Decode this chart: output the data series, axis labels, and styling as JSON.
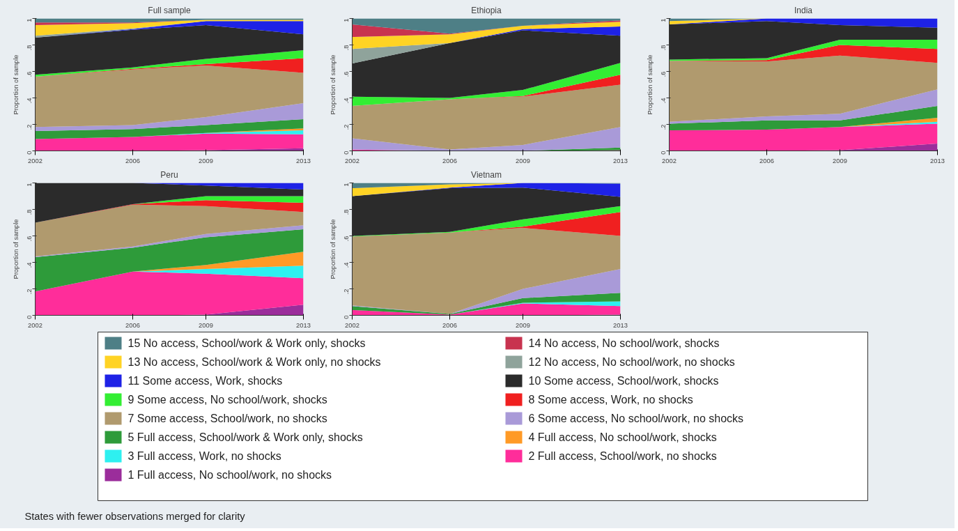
{
  "chart_data": [
    {
      "type": "area",
      "stacked": true,
      "title": "Full sample",
      "ylabel": "Proportion of sample",
      "x": [
        2002,
        2006,
        2009,
        2013
      ],
      "xlim": [
        2002,
        2013
      ],
      "xticks": [
        2002,
        2006,
        2009,
        2013
      ],
      "ylim": [
        0,
        1
      ],
      "yticks": [
        {
          "value": 0,
          "label": "0"
        },
        {
          "value": 0.2,
          "label": ".2"
        },
        {
          "value": 0.4,
          "label": ".4"
        },
        {
          "value": 0.6,
          "label": ".6"
        },
        {
          "value": 0.8,
          "label": ".8"
        },
        {
          "value": 1,
          "label": "1"
        }
      ],
      "legend": "bottom",
      "annotations": [
        "States with fewer observations merged for clarity"
      ],
      "series": [
        {
          "name": "1 Full access, No school/work, no shocks",
          "color": "#9b2d9b",
          "values": [
            0,
            0,
            0.005,
            0.02
          ]
        },
        {
          "name": "2 Full access, School/work, no shocks",
          "color": "#ff2d9a",
          "values": [
            0.09,
            0.105,
            0.125,
            0.105
          ]
        },
        {
          "name": "3 Full access, Work, no shocks",
          "color": "#2ef0f0",
          "values": [
            0,
            0,
            0.005,
            0.03
          ]
        },
        {
          "name": "4 Full access, No school/work, shocks",
          "color": "#ff9a26",
          "values": [
            0,
            0,
            0,
            0.015
          ]
        },
        {
          "name": "5 Full access, School/work & Work only, shocks",
          "color": "#2e9b3a",
          "values": [
            0.06,
            0.06,
            0.06,
            0.07
          ]
        },
        {
          "name": "6 Some access, No school/work, no shocks",
          "color": "#a99ad8",
          "values": [
            0.03,
            0.03,
            0.06,
            0.12
          ]
        },
        {
          "name": "7 Some access, School/work, no shocks",
          "color": "#b09a6e",
          "values": [
            0.38,
            0.42,
            0.39,
            0.23
          ]
        },
        {
          "name": "8 Some access, Work, no shocks",
          "color": "#f02020",
          "values": [
            0,
            0.005,
            0.01,
            0.11
          ]
        },
        {
          "name": "9 Some access, No school/work, shocks",
          "color": "#33ee33",
          "values": [
            0.015,
            0.01,
            0.04,
            0.06
          ]
        },
        {
          "name": "10 Some access, School/work, shocks",
          "color": "#2b2b2b",
          "values": [
            0.28,
            0.285,
            0.255,
            0.12
          ]
        },
        {
          "name": "11 Some access, Work, shocks",
          "color": "#1e22e6",
          "values": [
            0,
            0.005,
            0.03,
            0.1
          ]
        },
        {
          "name": "12 No access, No school/work, no shocks",
          "color": "#8fa39b",
          "values": [
            0.015,
            0.005,
            0,
            null
          ]
        },
        {
          "name": "13 No access, School/work & Work only, no shocks",
          "color": "#ffd324",
          "values": [
            0.08,
            0.04,
            0.01,
            0.01
          ]
        },
        {
          "name": "14 No access, No school/work, shocks",
          "color": "#c8334f",
          "values": [
            0.02,
            0.005,
            0,
            null
          ]
        },
        {
          "name": "15 No access, School/work & Work only, shocks",
          "color": "#4e7f86",
          "values": [
            0.03,
            0.03,
            0.01,
            0.01
          ]
        }
      ]
    },
    {
      "type": "area",
      "stacked": true,
      "title": "Ethiopia",
      "ylabel": "Proportion of sample",
      "x": [
        2002,
        2006,
        2009,
        2013
      ],
      "xlim": [
        2002,
        2013
      ],
      "xticks": [
        2002,
        2006,
        2009,
        2013
      ],
      "ylim": [
        0,
        1
      ],
      "yticks": [
        {
          "value": 0,
          "label": "0"
        },
        {
          "value": 0.2,
          "label": ".2"
        },
        {
          "value": 0.4,
          "label": ".4"
        },
        {
          "value": 0.6,
          "label": ".6"
        },
        {
          "value": 0.8,
          "label": ".8"
        },
        {
          "value": 1,
          "label": "1"
        }
      ],
      "series": [
        {
          "color": "#ff2d9a",
          "values": [
            0.01,
            0,
            0,
            0.005
          ]
        },
        {
          "color": "#2e9b3a",
          "values": [
            0,
            0,
            0,
            0.02
          ]
        },
        {
          "color": "#a99ad8",
          "values": [
            0.085,
            0.01,
            0.045,
            0.155
          ]
        },
        {
          "color": "#b09a6e",
          "values": [
            0.245,
            0.38,
            0.365,
            0.32
          ]
        },
        {
          "color": "#f02020",
          "values": [
            0,
            0,
            0.005,
            0.075
          ]
        },
        {
          "color": "#33ee33",
          "values": [
            0.07,
            0.01,
            0.045,
            0.09
          ]
        },
        {
          "color": "#2b2b2b",
          "values": [
            0.25,
            0.415,
            0.45,
            0.205
          ]
        },
        {
          "color": "#1e22e6",
          "values": [
            0,
            0,
            0.01,
            0.07
          ]
        },
        {
          "color": "#8fa39b",
          "values": [
            0.11,
            0,
            null,
            null
          ]
        },
        {
          "color": "#ffd324",
          "values": [
            0.09,
            0.065,
            0.025,
            0.035
          ]
        },
        {
          "color": "#c8334f",
          "values": [
            0.095,
            0.005,
            0,
            0.01
          ]
        },
        {
          "color": "#4e7f86",
          "values": [
            0.045,
            0.115,
            0.055,
            0.015
          ]
        }
      ]
    },
    {
      "type": "area",
      "stacked": true,
      "title": "India",
      "ylabel": "Proportion of sample",
      "x": [
        2002,
        2006,
        2009,
        2013
      ],
      "xlim": [
        2002,
        2013
      ],
      "xticks": [
        2002,
        2006,
        2009,
        2013
      ],
      "ylim": [
        0,
        1
      ],
      "yticks": [
        {
          "value": 0,
          "label": "0"
        },
        {
          "value": 0.2,
          "label": ".2"
        },
        {
          "value": 0.4,
          "label": ".4"
        },
        {
          "value": 0.6,
          "label": ".6"
        },
        {
          "value": 0.8,
          "label": ".8"
        },
        {
          "value": 1,
          "label": "1"
        }
      ],
      "series": [
        {
          "color": "#9b2d9b",
          "values": [
            0,
            0,
            0.005,
            0.055
          ]
        },
        {
          "color": "#ff2d9a",
          "values": [
            0.155,
            0.16,
            0.175,
            0.15
          ]
        },
        {
          "color": "#2ef0f0",
          "values": [
            0,
            0,
            0,
            0.015
          ]
        },
        {
          "color": "#ff9a26",
          "values": [
            0,
            0,
            0,
            0.03
          ]
        },
        {
          "color": "#2e9b3a",
          "values": [
            0.05,
            0.07,
            0.05,
            0.09
          ]
        },
        {
          "color": "#a99ad8",
          "values": [
            0.015,
            0.03,
            0.05,
            0.125
          ]
        },
        {
          "color": "#b09a6e",
          "values": [
            0.46,
            0.415,
            0.44,
            0.2
          ]
        },
        {
          "color": "#f02020",
          "values": [
            0,
            0.01,
            0.08,
            0.105
          ]
        },
        {
          "color": "#33ee33",
          "values": [
            0.01,
            0.015,
            0.04,
            0.07
          ]
        },
        {
          "color": "#2b2b2b",
          "values": [
            0.265,
            0.28,
            0.11,
            0.09
          ]
        },
        {
          "color": "#1e22e6",
          "values": [
            0,
            0.02,
            0.05,
            0.07
          ]
        },
        {
          "color": "#ffd324",
          "values": [
            0.025,
            0,
            null,
            null
          ]
        },
        {
          "color": "#4e7f86",
          "values": [
            0.02,
            0,
            null,
            null
          ]
        }
      ]
    },
    {
      "type": "area",
      "stacked": true,
      "title": "Peru",
      "ylabel": "Proportion of sample",
      "x": [
        2002,
        2006,
        2009,
        2013
      ],
      "xlim": [
        2002,
        2013
      ],
      "xticks": [
        2002,
        2006,
        2009,
        2013
      ],
      "ylim": [
        0,
        1
      ],
      "yticks": [
        {
          "value": 0,
          "label": "0"
        },
        {
          "value": 0.2,
          "label": ".2"
        },
        {
          "value": 0.4,
          "label": ".4"
        },
        {
          "value": 0.6,
          "label": ".6"
        },
        {
          "value": 0.8,
          "label": ".8"
        },
        {
          "value": 1,
          "label": "1"
        }
      ],
      "series": [
        {
          "color": "#9b2d9b",
          "values": [
            0,
            0,
            0.005,
            0.08
          ]
        },
        {
          "color": "#ff2d9a",
          "values": [
            0.18,
            0.33,
            0.31,
            0.2
          ]
        },
        {
          "color": "#2ef0f0",
          "values": [
            0,
            0,
            0.035,
            0.095
          ]
        },
        {
          "color": "#ff9a26",
          "values": [
            0,
            0,
            0.03,
            0.105
          ]
        },
        {
          "color": "#2e9b3a",
          "values": [
            0.26,
            0.18,
            0.21,
            0.17
          ]
        },
        {
          "color": "#a99ad8",
          "values": [
            0.005,
            0.01,
            0.025,
            0.03
          ]
        },
        {
          "color": "#b09a6e",
          "values": [
            0.255,
            0.315,
            0.21,
            0.1
          ]
        },
        {
          "color": "#f02020",
          "values": [
            0,
            0.005,
            0.045,
            0.07
          ]
        },
        {
          "color": "#33ee33",
          "values": [
            0,
            0,
            0.03,
            0.05
          ]
        },
        {
          "color": "#2b2b2b",
          "values": [
            0.3,
            0.16,
            0.08,
            0.05
          ]
        },
        {
          "color": "#1e22e6",
          "values": [
            0,
            0,
            0.02,
            0.05
          ]
        }
      ]
    },
    {
      "type": "area",
      "stacked": true,
      "title": "Vietnam",
      "ylabel": "Proportion of sample",
      "x": [
        2002,
        2006,
        2009,
        2013
      ],
      "xlim": [
        2002,
        2013
      ],
      "xticks": [
        2002,
        2006,
        2009,
        2013
      ],
      "ylim": [
        0,
        1
      ],
      "yticks": [
        {
          "value": 0,
          "label": "0"
        },
        {
          "value": 0.2,
          "label": ".2"
        },
        {
          "value": 0.4,
          "label": ".4"
        },
        {
          "value": 0.6,
          "label": ".6"
        },
        {
          "value": 0.8,
          "label": ".8"
        },
        {
          "value": 1,
          "label": "1"
        }
      ],
      "series": [
        {
          "color": "#9b2d9b",
          "values": [
            0,
            0,
            0,
            0.005
          ]
        },
        {
          "color": "#ff2d9a",
          "values": [
            0.04,
            0.005,
            0.09,
            0.065
          ]
        },
        {
          "color": "#2ef0f0",
          "values": [
            0,
            0,
            0.005,
            0.035
          ]
        },
        {
          "color": "#2e9b3a",
          "values": [
            0.03,
            0.005,
            0.035,
            0.065
          ]
        },
        {
          "color": "#a99ad8",
          "values": [
            0.005,
            0,
            0.07,
            0.18
          ]
        },
        {
          "color": "#b09a6e",
          "values": [
            0.52,
            0.615,
            0.46,
            0.25
          ]
        },
        {
          "color": "#f02020",
          "values": [
            0,
            0,
            0.01,
            0.18
          ]
        },
        {
          "color": "#33ee33",
          "values": [
            0.005,
            0.005,
            0.055,
            0.045
          ]
        },
        {
          "color": "#2b2b2b",
          "values": [
            0.3,
            0.33,
            0.24,
            0.07
          ]
        },
        {
          "color": "#1e22e6",
          "values": [
            0,
            0.005,
            0.035,
            0.1
          ]
        },
        {
          "color": "#ffd324",
          "values": [
            0.06,
            0.025,
            0,
            null
          ]
        },
        {
          "color": "#4e7f86",
          "values": [
            0.04,
            0.01,
            0,
            0.005
          ]
        }
      ]
    }
  ]
}
